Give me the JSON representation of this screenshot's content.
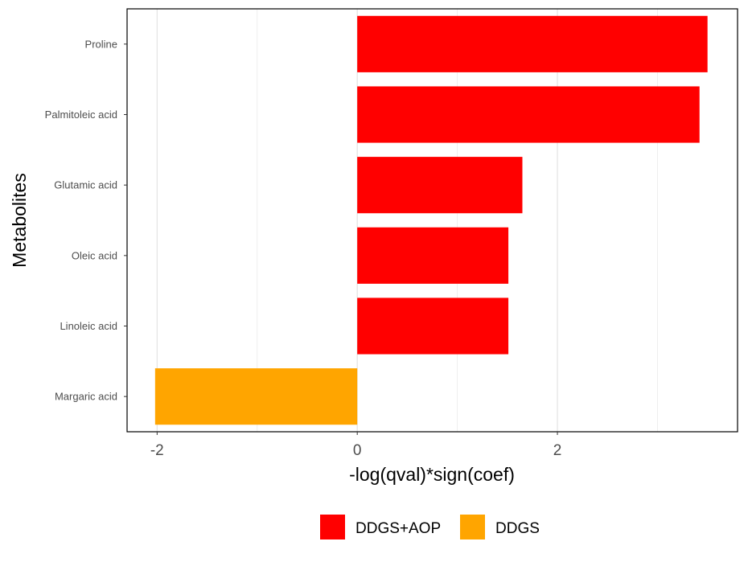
{
  "chart_data": {
    "type": "bar",
    "orientation": "horizontal",
    "xlabel": "-log(qval)*sign(coef)",
    "ylabel": "Metabolites",
    "xlim": [
      -2.3,
      3.8
    ],
    "x_ticks": [
      -2,
      0,
      2
    ],
    "x_tick_labels": [
      "-2",
      "0",
      "2"
    ],
    "categories": [
      "Proline",
      "Palmitoleic acid",
      "Glutamic acid",
      "Oleic acid",
      "Linoleic acid",
      "Margaric acid"
    ],
    "values": [
      3.5,
      3.42,
      1.65,
      1.51,
      1.51,
      -2.02
    ],
    "groups": [
      "DDGS+AOP",
      "DDGS+AOP",
      "DDGS+AOP",
      "DDGS+AOP",
      "DDGS+AOP",
      "DDGS"
    ],
    "grid": "vertical",
    "legend_position": "bottom",
    "legend": [
      {
        "name": "DDGS+AOP",
        "color": "#FF0000"
      },
      {
        "name": "DDGS",
        "color": "#FFA500"
      }
    ]
  }
}
